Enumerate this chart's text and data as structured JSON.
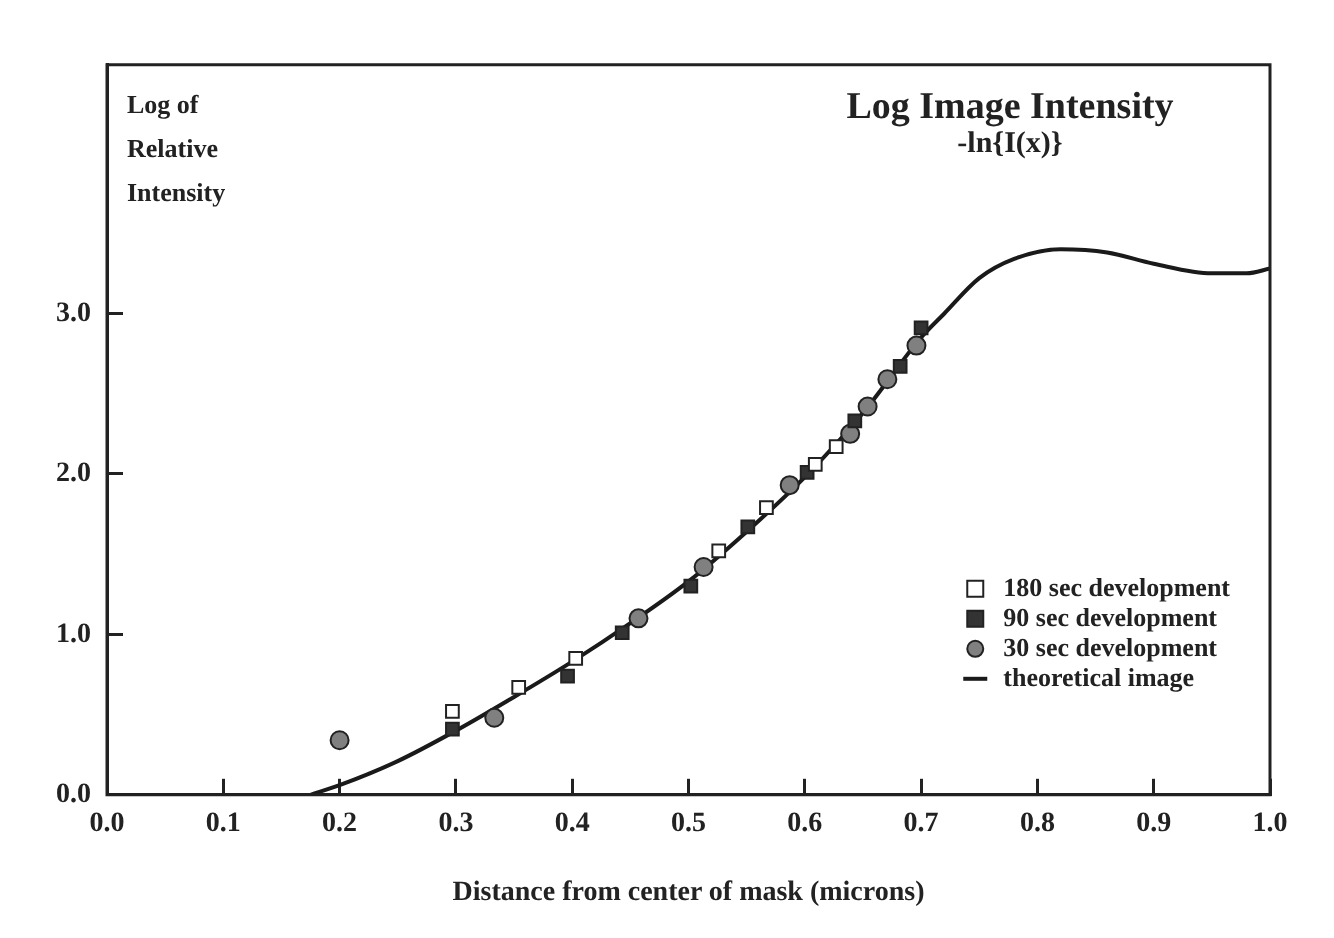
{
  "chart_data": {
    "type": "scatter",
    "title": "Log Image Intensity",
    "subtitle": "-ln{I(x)}",
    "xlabel": "Distance from center of mask (microns)",
    "ylabel": "Log of Relative Intensity",
    "xlim": [
      0,
      1
    ],
    "xticks": [
      {
        "value": 0,
        "label": "0.0"
      },
      {
        "value": 0.1,
        "label": "0.1"
      },
      {
        "value": 0.2,
        "label": "0.2"
      },
      {
        "value": 0.3,
        "label": "0.3"
      },
      {
        "value": 0.4,
        "label": "0.4"
      },
      {
        "value": 0.5,
        "label": "0.5"
      },
      {
        "value": 0.6,
        "label": "0.6"
      },
      {
        "value": 0.7,
        "label": "0.7"
      },
      {
        "value": 0.8,
        "label": "0.8"
      },
      {
        "value": 0.9,
        "label": "0.9"
      },
      {
        "value": 1,
        "label": "1.0"
      }
    ],
    "ylim": [
      0,
      4.55
    ],
    "yticks": [
      {
        "value": 0,
        "label": "0.0"
      },
      {
        "value": 1,
        "label": "1.0"
      },
      {
        "value": 2,
        "label": "2.0"
      },
      {
        "value": 3,
        "label": "3.0"
      }
    ],
    "grid": false,
    "legend": "bottom right",
    "series": [
      {
        "name": "180 sec development",
        "type": "scatter",
        "marker": "square",
        "color": "#ffffff",
        "x": [
          0.297,
          0.354,
          0.403,
          0.526,
          0.567,
          0.609,
          0.627
        ],
        "values": [
          0.52,
          0.67,
          0.85,
          1.52,
          1.79,
          2.06,
          2.17
        ]
      },
      {
        "name": "90 sec development",
        "type": "scatter",
        "marker": "square",
        "color": "#333333",
        "x": [
          0.297,
          0.396,
          0.443,
          0.502,
          0.551,
          0.602,
          0.643,
          0.682,
          0.7
        ],
        "values": [
          0.41,
          0.74,
          1.01,
          1.3,
          1.67,
          2.01,
          2.33,
          2.67,
          2.91
        ]
      },
      {
        "name": "30 sec development",
        "type": "scatter",
        "marker": "circle",
        "color": "#808080",
        "x": [
          0.2,
          0.333,
          0.457,
          0.513,
          0.587,
          0.639,
          0.654,
          0.671,
          0.696
        ],
        "values": [
          0.34,
          0.48,
          1.1,
          1.42,
          1.93,
          2.25,
          2.42,
          2.59,
          2.8
        ]
      },
      {
        "name": "theoretical image",
        "type": "line",
        "marker": "none",
        "color": "#1a1a1a",
        "x": [
          0.175,
          0.2,
          0.25,
          0.3,
          0.35,
          0.4,
          0.45,
          0.5,
          0.55,
          0.6,
          0.65,
          0.7,
          0.72,
          0.75,
          0.78,
          0.82,
          0.86,
          0.9,
          0.95,
          0.98,
          1.0
        ],
        "values": [
          0,
          0.06,
          0.21,
          0.4,
          0.61,
          0.83,
          1.07,
          1.33,
          1.64,
          1.98,
          2.38,
          2.85,
          3.0,
          3.22,
          3.34,
          3.4,
          3.38,
          3.31,
          3.25,
          3.25,
          3.28
        ]
      }
    ]
  }
}
